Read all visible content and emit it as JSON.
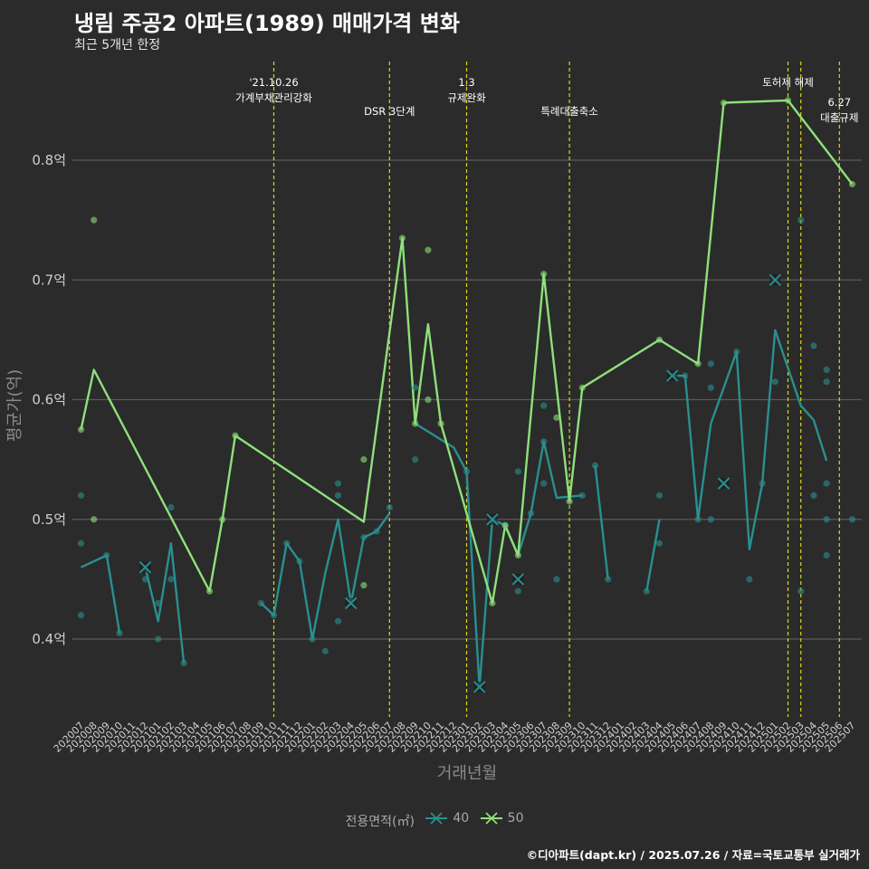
{
  "title": "냉림 주공2 아파트(1989) 매매가격 변화",
  "subtitle": "최근 5개년 한정",
  "caption": "©디아파트(dapt.kr) / 2025.07.26 / 자료=국토교통부 실거래가",
  "legend": {
    "title": "전용면적(㎡)",
    "items": [
      {
        "label": "40",
        "color": "#2a8f8f"
      },
      {
        "label": "50",
        "color": "#8ee07a"
      }
    ]
  },
  "chart_data": {
    "type": "line",
    "title": "냉림 주공2 아파트(1989) 매매가격 변화",
    "subtitle": "최근 5개년 한정",
    "xlabel": "거래년월",
    "ylabel": "평균가(억)",
    "ylim": [
      0.335,
      0.89
    ],
    "yticks": [
      0.4,
      0.5,
      0.6,
      0.7,
      0.8
    ],
    "ytick_labels": [
      "0.4억",
      "0.5억",
      "0.6억",
      "0.7억",
      "0.8억"
    ],
    "grid": true,
    "legend_position": "bottom",
    "categories": [
      "202007",
      "202008",
      "202009",
      "202010",
      "202011",
      "202012",
      "202101",
      "202102",
      "202103",
      "202104",
      "202105",
      "202106",
      "202107",
      "202108",
      "202109",
      "202110",
      "202111",
      "202112",
      "202201",
      "202202",
      "202203",
      "202204",
      "202205",
      "202206",
      "202207",
      "202208",
      "202209",
      "202210",
      "202211",
      "202212",
      "202301",
      "202302",
      "202303",
      "202304",
      "202305",
      "202306",
      "202307",
      "202308",
      "202309",
      "202310",
      "202311",
      "202312",
      "202401",
      "202402",
      "202403",
      "202404",
      "202405",
      "202406",
      "202407",
      "202408",
      "202409",
      "202410",
      "202411",
      "202412",
      "202501",
      "202502",
      "202503",
      "202504",
      "202505",
      "202506",
      "202507"
    ],
    "series": [
      {
        "name": "40",
        "color": "#2a8f8f",
        "line": [
          [
            [
              "202007",
              0.46
            ],
            [
              "202009",
              0.47
            ],
            [
              "202010",
              0.405
            ]
          ],
          [
            [
              "202012",
              0.46
            ],
            [
              "202101",
              0.415
            ],
            [
              "202102",
              0.48
            ],
            [
              "202103",
              0.38
            ]
          ],
          [
            [
              "202109",
              0.43
            ],
            [
              "202110",
              0.42
            ],
            [
              "202111",
              0.48
            ],
            [
              "202112",
              0.465
            ],
            [
              "202201",
              0.4
            ],
            [
              "202202",
              0.455
            ],
            [
              "202203",
              0.5
            ],
            [
              "202204",
              0.43
            ],
            [
              "202205",
              0.485
            ],
            [
              "202206",
              0.49
            ],
            [
              "202207",
              0.505
            ]
          ],
          [
            [
              "202209",
              0.58
            ],
            [
              "202212",
              0.56
            ],
            [
              "202301",
              0.54
            ],
            [
              "202302",
              0.36
            ],
            [
              "202303",
              0.5
            ],
            [
              "202304",
              0.495
            ],
            [
              "202305",
              0.47
            ],
            [
              "202306",
              0.505
            ],
            [
              "202307",
              0.565
            ],
            [
              "202308",
              0.518
            ],
            [
              "202310",
              0.52
            ]
          ],
          [
            [
              "202311",
              0.545
            ],
            [
              "202312",
              0.45
            ]
          ],
          [
            [
              "202403",
              0.44
            ],
            [
              "202404",
              0.5
            ]
          ],
          [
            [
              "202405",
              0.62
            ],
            [
              "202406",
              0.62
            ],
            [
              "202407",
              0.5
            ],
            [
              "202408",
              0.58
            ],
            [
              "202410",
              0.64
            ],
            [
              "202411",
              0.475
            ],
            [
              "202412",
              0.53
            ],
            [
              "202501",
              0.658
            ],
            [
              "202503",
              0.595
            ],
            [
              "202504",
              0.583
            ],
            [
              "202505",
              0.549
            ]
          ]
        ],
        "points": [
          [
            "202007",
            0.52
          ],
          [
            "202007",
            0.48
          ],
          [
            "202007",
            0.42
          ],
          [
            "202009",
            0.47
          ],
          [
            "202010",
            0.405
          ],
          [
            "202012",
            0.45
          ],
          [
            "202101",
            0.43
          ],
          [
            "202101",
            0.4
          ],
          [
            "202102",
            0.51
          ],
          [
            "202102",
            0.45
          ],
          [
            "202103",
            0.38
          ],
          [
            "202109",
            0.43
          ],
          [
            "202110",
            0.42
          ],
          [
            "202111",
            0.48
          ],
          [
            "202112",
            0.465
          ],
          [
            "202201",
            0.4
          ],
          [
            "202202",
            0.39
          ],
          [
            "202203",
            0.53
          ],
          [
            "202203",
            0.52
          ],
          [
            "202203",
            0.415
          ],
          [
            "202205",
            0.485
          ],
          [
            "202206",
            0.49
          ],
          [
            "202207",
            0.51
          ],
          [
            "202209",
            0.61
          ],
          [
            "202209",
            0.55
          ],
          [
            "202301",
            0.54
          ],
          [
            "202304",
            0.495
          ],
          [
            "202305",
            0.54
          ],
          [
            "202305",
            0.44
          ],
          [
            "202306",
            0.505
          ],
          [
            "202307",
            0.595
          ],
          [
            "202307",
            0.53
          ],
          [
            "202307",
            0.565
          ],
          [
            "202308",
            0.45
          ],
          [
            "202310",
            0.52
          ],
          [
            "202311",
            0.545
          ],
          [
            "202312",
            0.45
          ],
          [
            "202403",
            0.44
          ],
          [
            "202404",
            0.52
          ],
          [
            "202404",
            0.48
          ],
          [
            "202406",
            0.62
          ],
          [
            "202407",
            0.5
          ],
          [
            "202408",
            0.63
          ],
          [
            "202408",
            0.61
          ],
          [
            "202408",
            0.5
          ],
          [
            "202410",
            0.64
          ],
          [
            "202411",
            0.45
          ],
          [
            "202412",
            0.53
          ],
          [
            "202501",
            0.615
          ],
          [
            "202503",
            0.75
          ],
          [
            "202503",
            0.44
          ],
          [
            "202504",
            0.645
          ],
          [
            "202504",
            0.52
          ],
          [
            "202505",
            0.625
          ],
          [
            "202505",
            0.615
          ],
          [
            "202505",
            0.53
          ],
          [
            "202505",
            0.5
          ],
          [
            "202505",
            0.47
          ],
          [
            "202507",
            0.5
          ]
        ],
        "single_trade_markers": [
          [
            "202012",
            0.46
          ],
          [
            "202204",
            0.43
          ],
          [
            "202302",
            0.36
          ],
          [
            "202303",
            0.5
          ],
          [
            "202305",
            0.45
          ],
          [
            "202405",
            0.62
          ],
          [
            "202409",
            0.53
          ],
          [
            "202501",
            0.7
          ]
        ]
      },
      {
        "name": "50",
        "color": "#8ee07a",
        "line": [
          [
            [
              "202007",
              0.575
            ],
            [
              "202008",
              0.625
            ],
            [
              "202105",
              0.44
            ],
            [
              "202106",
              0.5
            ],
            [
              "202107",
              0.57
            ],
            [
              "202205",
              0.498
            ],
            [
              "202208",
              0.735
            ],
            [
              "202209",
              0.58
            ],
            [
              "202210",
              0.663
            ],
            [
              "202211",
              0.58
            ],
            [
              "202303",
              0.43
            ],
            [
              "202304",
              0.495
            ],
            [
              "202305",
              0.47
            ],
            [
              "202307",
              0.705
            ],
            [
              "202309",
              0.515
            ],
            [
              "202310",
              0.61
            ],
            [
              "202404",
              0.65
            ],
            [
              "202407",
              0.63
            ],
            [
              "202409",
              0.848
            ],
            [
              "202502",
              0.85
            ],
            [
              "202507",
              0.78
            ]
          ]
        ],
        "points": [
          [
            "202007",
            0.575
          ],
          [
            "202008",
            0.75
          ],
          [
            "202008",
            0.5
          ],
          [
            "202105",
            0.44
          ],
          [
            "202106",
            0.5
          ],
          [
            "202107",
            0.57
          ],
          [
            "202205",
            0.55
          ],
          [
            "202205",
            0.445
          ],
          [
            "202208",
            0.735
          ],
          [
            "202209",
            0.58
          ],
          [
            "202210",
            0.725
          ],
          [
            "202210",
            0.6
          ],
          [
            "202211",
            0.58
          ],
          [
            "202303",
            0.43
          ],
          [
            "202304",
            0.495
          ],
          [
            "202305",
            0.47
          ],
          [
            "202307",
            0.705
          ],
          [
            "202308",
            0.585
          ],
          [
            "202309",
            0.515
          ],
          [
            "202310",
            0.61
          ],
          [
            "202404",
            0.65
          ],
          [
            "202407",
            0.63
          ],
          [
            "202409",
            0.848
          ],
          [
            "202502",
            0.85
          ],
          [
            "202507",
            0.78
          ]
        ]
      }
    ],
    "annotations": [
      {
        "x": "202110",
        "lines": [
          "'21.10.26",
          "가계부채관리강화"
        ],
        "row": 1
      },
      {
        "x": "202207",
        "lines": [
          "DSR 3단계"
        ],
        "row": 2
      },
      {
        "x": "202301",
        "lines": [
          "1.3",
          "규제완화"
        ],
        "row": 1
      },
      {
        "x": "202309",
        "lines": [
          "특례대출축소"
        ],
        "row": 2
      },
      {
        "x": "202502",
        "lines": [
          "토허제 해제"
        ],
        "row": 1
      },
      {
        "x": "202503",
        "lines": [],
        "row": 1
      },
      {
        "x": "202506",
        "lines": [
          "6.27",
          "대출규제"
        ],
        "row": 3
      }
    ]
  }
}
